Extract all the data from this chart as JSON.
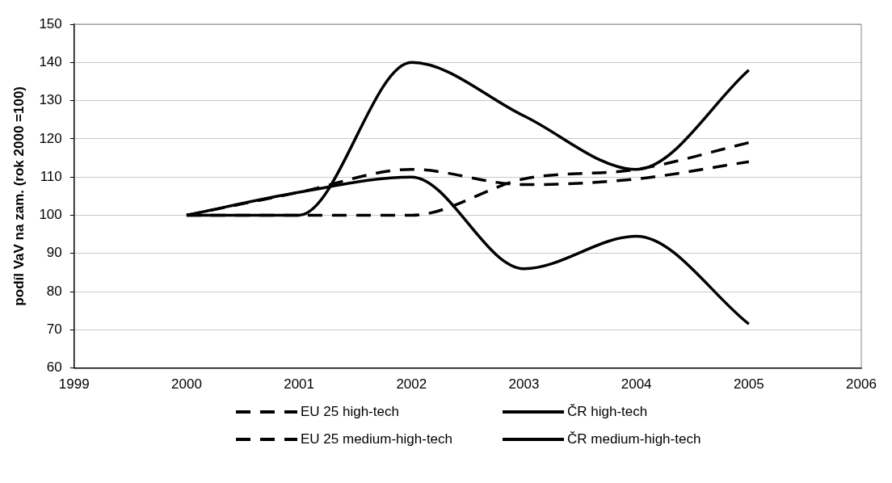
{
  "chart_data": {
    "type": "line",
    "ylabel": "podíl VaV na zam. (rok 2000 =100)",
    "x": [
      2000,
      2001,
      2002,
      2003,
      2004,
      2005
    ],
    "series": [
      {
        "name": "EU 25 high-tech",
        "color": "#000000",
        "line_style": "dashed",
        "values": [
          100,
          100,
          100,
          109.5,
          112,
          119
        ]
      },
      {
        "name": "ČR high-tech",
        "color": "#000000",
        "line_style": "solid",
        "values": [
          100,
          100,
          140,
          126,
          112,
          138
        ]
      },
      {
        "name": "EU 25 medium-high-tech",
        "color": "#000000",
        "line_style": "dashed",
        "values": [
          100,
          106,
          112,
          108,
          109.5,
          114
        ]
      },
      {
        "name": "ČR medium-high-tech",
        "color": "#000000",
        "line_style": "solid",
        "values": [
          100,
          106,
          110,
          86,
          94.5,
          71.5
        ]
      }
    ],
    "xlim": [
      1999,
      2006
    ],
    "xticks": [
      1999,
      2000,
      2001,
      2002,
      2003,
      2004,
      2005,
      2006
    ],
    "ylim": [
      60,
      150
    ],
    "yticks": [
      60,
      70,
      80,
      90,
      100,
      110,
      120,
      130,
      140,
      150
    ],
    "grid": "y",
    "legend": "bottom",
    "marker": "none"
  }
}
